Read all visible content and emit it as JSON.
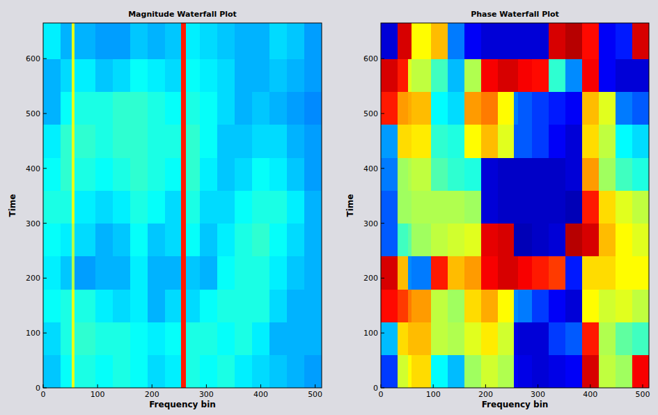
{
  "chart_data": [
    {
      "type": "heatmap",
      "title": "Magnitude Waterfall Plot",
      "x_label": "Frequency bin",
      "y_label": "Time",
      "xlim": [
        0,
        512
      ],
      "ylim": [
        0,
        665
      ],
      "xticks": [
        0,
        100,
        200,
        300,
        400,
        500
      ],
      "yticks": [
        0,
        100,
        200,
        300,
        400,
        500,
        600
      ],
      "color_range": [
        0,
        1
      ],
      "x_edges": [
        0,
        32,
        52,
        58,
        96,
        128,
        160,
        192,
        224,
        254,
        262,
        288,
        320,
        352,
        384,
        416,
        448,
        480,
        512
      ],
      "y_edges": [
        0,
        60,
        120,
        180,
        240,
        300,
        360,
        420,
        480,
        540,
        600,
        665
      ],
      "cells": [
        [
          0.32,
          0.38,
          0.6,
          0.4,
          0.38,
          0.4,
          0.38,
          0.34,
          0.36,
          0.85,
          0.4,
          0.38,
          0.4,
          0.36,
          0.34,
          0.32,
          0.3,
          0.28
        ],
        [
          0.34,
          0.4,
          0.6,
          0.42,
          0.4,
          0.4,
          0.38,
          0.36,
          0.38,
          0.85,
          0.4,
          0.4,
          0.38,
          0.4,
          0.36,
          0.3,
          0.3,
          0.3
        ],
        [
          0.38,
          0.4,
          0.6,
          0.4,
          0.36,
          0.34,
          0.36,
          0.3,
          0.34,
          0.85,
          0.34,
          0.38,
          0.4,
          0.4,
          0.4,
          0.34,
          0.3,
          0.3
        ],
        [
          0.36,
          0.32,
          0.55,
          0.28,
          0.3,
          0.3,
          0.36,
          0.3,
          0.3,
          0.85,
          0.32,
          0.3,
          0.38,
          0.4,
          0.4,
          0.36,
          0.32,
          0.3
        ],
        [
          0.38,
          0.36,
          0.55,
          0.34,
          0.3,
          0.32,
          0.38,
          0.32,
          0.34,
          0.85,
          0.38,
          0.32,
          0.36,
          0.4,
          0.42,
          0.38,
          0.34,
          0.3
        ],
        [
          0.4,
          0.4,
          0.6,
          0.36,
          0.34,
          0.36,
          0.4,
          0.38,
          0.34,
          0.85,
          0.4,
          0.34,
          0.34,
          0.38,
          0.4,
          0.4,
          0.36,
          0.3
        ],
        [
          0.38,
          0.42,
          0.6,
          0.4,
          0.38,
          0.4,
          0.42,
          0.4,
          0.38,
          0.85,
          0.42,
          0.36,
          0.32,
          0.34,
          0.38,
          0.36,
          0.32,
          0.28
        ],
        [
          0.36,
          0.42,
          0.6,
          0.42,
          0.4,
          0.42,
          0.42,
          0.4,
          0.4,
          0.85,
          0.42,
          0.38,
          0.32,
          0.32,
          0.34,
          0.34,
          0.3,
          0.28
        ],
        [
          0.3,
          0.38,
          0.6,
          0.4,
          0.4,
          0.42,
          0.42,
          0.4,
          0.38,
          0.85,
          0.4,
          0.38,
          0.34,
          0.3,
          0.32,
          0.3,
          0.28,
          0.26
        ],
        [
          0.3,
          0.34,
          0.6,
          0.36,
          0.32,
          0.34,
          0.38,
          0.36,
          0.34,
          0.85,
          0.38,
          0.36,
          0.34,
          0.3,
          0.3,
          0.32,
          0.3,
          0.28
        ],
        [
          0.36,
          0.3,
          0.6,
          0.3,
          0.28,
          0.28,
          0.32,
          0.3,
          0.32,
          0.85,
          0.36,
          0.34,
          0.32,
          0.3,
          0.3,
          0.34,
          0.32,
          0.28
        ]
      ]
    },
    {
      "type": "heatmap",
      "title": "Phase Waterfall Plot",
      "x_label": "Frequency bin",
      "y_label": "Time",
      "xlim": [
        0,
        512
      ],
      "ylim": [
        0,
        665
      ],
      "xticks": [
        0,
        100,
        200,
        300,
        400,
        500
      ],
      "yticks": [
        0,
        100,
        200,
        300,
        400,
        500,
        600
      ],
      "color_range": [
        -3.14,
        3.14
      ],
      "x_edges": [
        0,
        32,
        52,
        58,
        96,
        128,
        160,
        192,
        224,
        254,
        262,
        288,
        320,
        352,
        384,
        416,
        448,
        480,
        512
      ],
      "y_edges": [
        0,
        60,
        120,
        180,
        240,
        300,
        360,
        420,
        480,
        540,
        600,
        665
      ],
      "cells": [
        [
          -2.0,
          0.5,
          0.8,
          1.0,
          -0.8,
          -1.2,
          0.2,
          0.5,
          0.3,
          -2.4,
          -2.5,
          -2.6,
          -2.5,
          -2.4,
          2.6,
          0.4,
          0.2,
          2.4
        ],
        [
          -1.2,
          1.0,
          1.2,
          1.2,
          0.4,
          0.3,
          0.6,
          0.9,
          0.5,
          -2.5,
          -2.6,
          -2.6,
          -2.0,
          -1.8,
          2.2,
          0.3,
          -0.2,
          -0.4
        ],
        [
          2.3,
          2.0,
          1.6,
          1.4,
          0.4,
          0.2,
          1.0,
          1.3,
          0.8,
          -1.5,
          -1.6,
          -2.0,
          -2.4,
          -2.6,
          0.8,
          0.5,
          0.6,
          0.4
        ],
        [
          2.6,
          1.2,
          -1.5,
          -1.6,
          2.2,
          1.2,
          1.4,
          2.4,
          2.6,
          2.6,
          2.4,
          2.2,
          2.0,
          -2.2,
          1.0,
          1.0,
          0.8,
          0.8
        ],
        [
          -1.8,
          -0.4,
          -0.2,
          0.2,
          0.4,
          0.5,
          0.6,
          2.5,
          2.6,
          -2.8,
          -2.8,
          -2.7,
          -2.6,
          2.8,
          2.6,
          1.2,
          0.8,
          0.6
        ],
        [
          -1.8,
          0.2,
          0.2,
          0.3,
          0.3,
          0.3,
          0.2,
          -2.6,
          -2.7,
          -2.7,
          -2.7,
          -2.7,
          -2.7,
          -2.8,
          2.2,
          1.0,
          0.6,
          0.4
        ],
        [
          -1.6,
          0.2,
          0.3,
          0.4,
          -0.3,
          -0.5,
          -0.6,
          -2.6,
          -2.7,
          -2.7,
          -2.7,
          -2.7,
          -2.7,
          -2.6,
          1.4,
          0.2,
          -0.4,
          -0.6
        ],
        [
          -1.4,
          1.0,
          1.0,
          0.9,
          -0.5,
          -0.6,
          0.8,
          1.2,
          0.6,
          -1.8,
          -1.8,
          -2.0,
          -2.4,
          -2.6,
          1.0,
          0.4,
          -0.8,
          -1.0
        ],
        [
          2.2,
          1.4,
          1.3,
          1.2,
          -0.8,
          -1.0,
          1.4,
          1.6,
          0.8,
          -1.6,
          -1.8,
          -2.0,
          -2.2,
          -2.4,
          1.2,
          0.6,
          -1.6,
          -1.8
        ],
        [
          2.6,
          2.2,
          0.6,
          0.4,
          -0.4,
          -1.2,
          0.3,
          2.4,
          2.6,
          2.6,
          2.4,
          2.3,
          -0.5,
          -1.5,
          2.4,
          -2.4,
          -2.6,
          -2.6
        ],
        [
          -2.6,
          2.6,
          2.6,
          0.8,
          1.2,
          -1.6,
          -2.4,
          -2.6,
          -2.6,
          -2.6,
          -2.6,
          -2.6,
          2.6,
          2.8,
          2.3,
          -2.4,
          -2.2,
          2.6
        ]
      ]
    }
  ]
}
